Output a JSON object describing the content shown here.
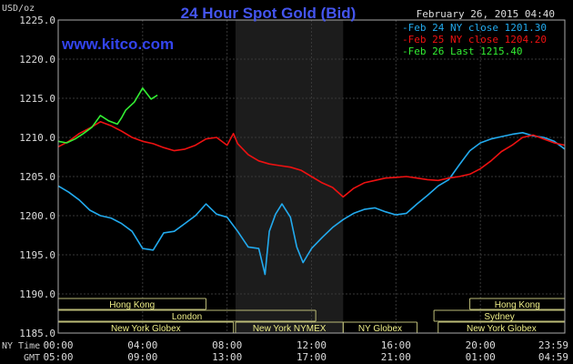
{
  "chart_data": {
    "type": "line",
    "title": "24 Hour Spot Gold (Bid)",
    "date_label": "February 26, 2015 04:40",
    "watermark": "www.kitco.com",
    "ylabel": "USD/oz",
    "ylim": [
      1185.0,
      1225.0
    ],
    "y_ticks": [
      "1185.0",
      "1190.0",
      "1195.0",
      "1200.0",
      "1205.0",
      "1210.0",
      "1215.0",
      "1220.0",
      "1225.0"
    ],
    "x_row_labels": [
      "NY Time",
      "GMT"
    ],
    "x_ticks_ny": [
      "00:00",
      "04:00",
      "08:00",
      "12:00",
      "16:00",
      "20:00",
      "23:59"
    ],
    "x_ticks_gmt": [
      "05:00",
      "09:00",
      "13:00",
      "17:00",
      "21:00",
      "01:00",
      "04:59"
    ],
    "xlim_hours": [
      0,
      24
    ],
    "shaded_period_hours": [
      8.4,
      13.5
    ],
    "grid": true,
    "legend_position": "top-right",
    "series": [
      {
        "name": "Feb 24 NY close 1201.30",
        "color": "#22aaee",
        "x": [
          0,
          0.5,
          1,
          1.5,
          2,
          2.5,
          3,
          3.5,
          4,
          4.5,
          5,
          5.5,
          6,
          6.5,
          7,
          7.5,
          8,
          8.5,
          9,
          9.5,
          9.8,
          10,
          10.3,
          10.6,
          11,
          11.3,
          11.6,
          12,
          12.5,
          13,
          13.5,
          14,
          14.5,
          15,
          15.5,
          16,
          16.5,
          17,
          17.5,
          18,
          18.5,
          19,
          19.5,
          20,
          20.5,
          21,
          21.5,
          22,
          22.5,
          23,
          23.5,
          24
        ],
        "y": [
          1203.8,
          1203.0,
          1202.0,
          1200.7,
          1200.0,
          1199.7,
          1199.0,
          1198.0,
          1195.8,
          1195.6,
          1197.8,
          1198.0,
          1199.0,
          1200.0,
          1201.5,
          1200.2,
          1199.8,
          1198.0,
          1196.0,
          1195.8,
          1192.5,
          1198.0,
          1200.2,
          1201.5,
          1199.8,
          1196.0,
          1194.0,
          1195.8,
          1197.2,
          1198.5,
          1199.5,
          1200.3,
          1200.8,
          1201.0,
          1200.5,
          1200.1,
          1200.3,
          1201.5,
          1202.6,
          1203.8,
          1204.6,
          1206.5,
          1208.3,
          1209.3,
          1209.8,
          1210.1,
          1210.4,
          1210.6,
          1210.2,
          1210.0,
          1209.5,
          1208.5
        ]
      },
      {
        "name": "Feb 25 NY close 1204.20",
        "color": "#ee1111",
        "x": [
          0,
          0.5,
          1,
          1.5,
          2,
          2.5,
          3,
          3.5,
          4,
          4.5,
          5,
          5.5,
          6,
          6.5,
          7,
          7.5,
          8,
          8.3,
          8.5,
          9,
          9.5,
          10,
          10.5,
          11,
          11.5,
          12,
          12.5,
          13,
          13.5,
          14,
          14.5,
          15,
          15.5,
          16,
          16.5,
          17,
          17.5,
          18,
          18.5,
          19,
          19.5,
          20,
          20.5,
          21,
          21.5,
          22,
          22.5,
          23,
          23.5,
          24
        ],
        "y": [
          1208.8,
          1209.5,
          1210.5,
          1211.2,
          1212.0,
          1211.5,
          1210.8,
          1210.0,
          1209.5,
          1209.2,
          1208.7,
          1208.3,
          1208.5,
          1209.0,
          1209.8,
          1210.0,
          1209.0,
          1210.5,
          1209.2,
          1207.8,
          1207.0,
          1206.6,
          1206.4,
          1206.2,
          1205.8,
          1205.0,
          1204.2,
          1203.6,
          1202.4,
          1203.5,
          1204.2,
          1204.5,
          1204.8,
          1204.9,
          1205.0,
          1204.8,
          1204.6,
          1204.5,
          1204.8,
          1205.0,
          1205.3,
          1206.0,
          1207.0,
          1208.2,
          1209.0,
          1210.0,
          1210.3,
          1209.8,
          1209.3,
          1209.0
        ]
      },
      {
        "name": "Feb 26 Last 1215.40",
        "color": "#33ee33",
        "x": [
          0,
          0.4,
          0.8,
          1.2,
          1.6,
          2.0,
          2.4,
          2.8,
          3.0,
          3.2,
          3.6,
          4.0,
          4.4,
          4.7
        ],
        "y": [
          1209.5,
          1209.3,
          1209.8,
          1210.5,
          1211.3,
          1212.8,
          1212.1,
          1211.7,
          1212.5,
          1213.5,
          1214.5,
          1216.3,
          1214.9,
          1215.4
        ]
      }
    ],
    "sessions": [
      {
        "name": "Hong Kong",
        "row": 0,
        "start": 0,
        "end": 7.0,
        "open": "left"
      },
      {
        "name": "Hong Kong",
        "row": 0,
        "start": 19.5,
        "end": 24,
        "open": "right"
      },
      {
        "name": "London",
        "row": 1,
        "start": 0,
        "end": 12.2,
        "open": "none"
      },
      {
        "name": "Sydney",
        "row": 1,
        "start": 17.8,
        "end": 24,
        "open": "right"
      },
      {
        "name": "New York Globex",
        "row": 2,
        "start": 0,
        "end": 8.3,
        "open": "left"
      },
      {
        "name": "New York NYMEX",
        "row": 2,
        "start": 8.4,
        "end": 13.5,
        "open": "none"
      },
      {
        "name": "NY Globex",
        "row": 2,
        "start": 13.5,
        "end": 17.0,
        "open": "none"
      },
      {
        "name": "New York Globex",
        "row": 2,
        "start": 18.0,
        "end": 24,
        "open": "right"
      }
    ]
  }
}
